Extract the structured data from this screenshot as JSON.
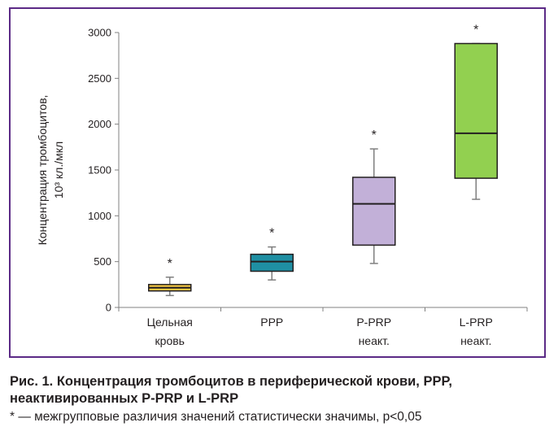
{
  "chart_data": {
    "type": "box",
    "ylabel_line1": "Концентрация тромбоцитов,",
    "ylabel_line2": "10³ кл./мкл",
    "ylim": [
      0,
      3000
    ],
    "yticks": [
      0,
      500,
      1000,
      1500,
      2000,
      2500,
      3000
    ],
    "grid": false,
    "categories": [
      {
        "line1": "Цельная",
        "line2": "кровь"
      },
      {
        "line1": "PPP",
        "line2": ""
      },
      {
        "line1": "P-PRP",
        "line2": "неакт."
      },
      {
        "line1": "L-PRP",
        "line2": "неакт."
      }
    ],
    "series": [
      {
        "min": 130,
        "q1": 180,
        "median": 215,
        "q3": 250,
        "max": 330,
        "color": "#f5c842",
        "significance": "*"
      },
      {
        "min": 300,
        "q1": 395,
        "median": 500,
        "q3": 580,
        "max": 660,
        "color": "#1f8fa3",
        "significance": "*"
      },
      {
        "min": 480,
        "q1": 680,
        "median": 1130,
        "q3": 1420,
        "max": 1730,
        "color": "#c2b0d8",
        "significance": "*"
      },
      {
        "min": 1180,
        "q1": 1410,
        "median": 1900,
        "q3": 2880,
        "max": 2880,
        "color": "#92d050",
        "significance": "*"
      }
    ]
  },
  "caption": {
    "title": "Рис. 1. Концентрация тромбоцитов в периферической крови, PPP, неактивированных P-PRP и L-PRP",
    "note": "* — межгрупповые различия значений статистически значимы, p<0,05"
  },
  "colors": {
    "frame": "#5b2a86",
    "axis": "#808080",
    "box_stroke": "#231f20"
  }
}
